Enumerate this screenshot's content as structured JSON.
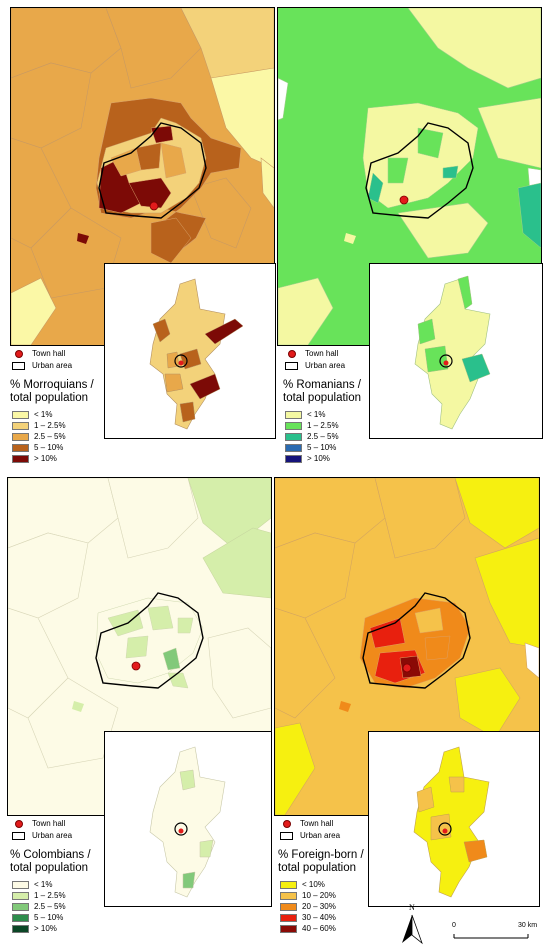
{
  "common": {
    "town_hall_label": "Town hall",
    "urban_area_label": "Urban area",
    "north_label": "N",
    "scale_start": "0",
    "scale_end": "30 km"
  },
  "panels": [
    {
      "title_line1": "% Morroquians /",
      "title_line2": "total population",
      "classes": [
        {
          "label": "< 1%",
          "color": "#fbf8a6"
        },
        {
          "label": "1 – 2.5%",
          "color": "#f3d27a"
        },
        {
          "label": "2.5 – 5%",
          "color": "#e8a84a"
        },
        {
          "label": "5 – 10%",
          "color": "#b8621c"
        },
        {
          "label": "> 10%",
          "color": "#7c0a06"
        }
      ]
    },
    {
      "title_line1": "% Romanians /",
      "title_line2": "total population",
      "classes": [
        {
          "label": "< 1%",
          "color": "#f4f8a2"
        },
        {
          "label": "1 – 2.5%",
          "color": "#68e35a"
        },
        {
          "label": "2.5 – 5%",
          "color": "#2ac08c"
        },
        {
          "label": "5 – 10%",
          "color": "#2a6ab0"
        },
        {
          "label": "> 10%",
          "color": "#15137a"
        }
      ]
    },
    {
      "title_line1": "% Colombians /",
      "title_line2": "total population",
      "classes": [
        {
          "label": "< 1%",
          "color": "#fdfbe6"
        },
        {
          "label": "1 – 2.5%",
          "color": "#d5eeaa"
        },
        {
          "label": "2.5 – 5%",
          "color": "#82c97a"
        },
        {
          "label": "5 – 10%",
          "color": "#2e8d4c"
        },
        {
          "label": "> 10%",
          "color": "#0b4626"
        }
      ]
    },
    {
      "title_line1": "% Foreign-born /",
      "title_line2": "total population",
      "classes": [
        {
          "label": "< 10%",
          "color": "#f6f010"
        },
        {
          "label": "10 – 20%",
          "color": "#f5c24a"
        },
        {
          "label": "20 – 30%",
          "color": "#f08a1a"
        },
        {
          "label": "30 – 40%",
          "color": "#e8200e"
        },
        {
          "label": "40 – 60%",
          "color": "#8a0a06"
        }
      ]
    }
  ]
}
